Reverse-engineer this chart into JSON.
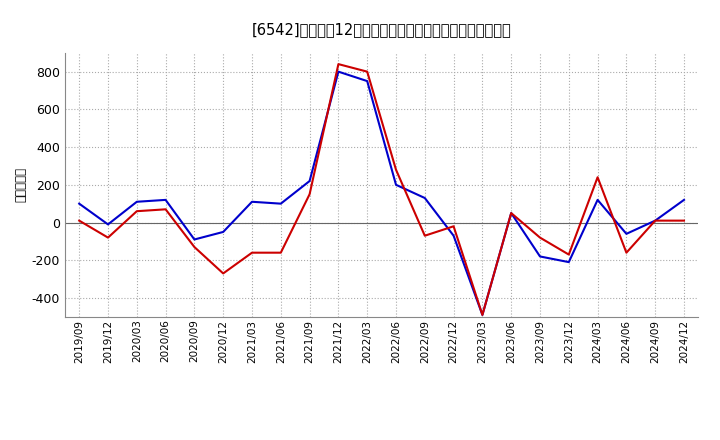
{
  "title": "[6542]　利益だ12か月移動合計の対前年同期増減額の推移",
  "ylabel": "（百万円）",
  "background_color": "#ffffff",
  "grid_color": "#aaaaaa",
  "x_labels": [
    "2019/09",
    "2019/12",
    "2020/03",
    "2020/06",
    "2020/09",
    "2020/12",
    "2021/03",
    "2021/06",
    "2021/09",
    "2021/12",
    "2022/03",
    "2022/06",
    "2022/09",
    "2022/12",
    "2023/03",
    "2023/06",
    "2023/09",
    "2023/12",
    "2024/03",
    "2024/06",
    "2024/09",
    "2024/12"
  ],
  "keijo_rieki": [
    100,
    -10,
    110,
    120,
    -90,
    -50,
    110,
    100,
    220,
    800,
    750,
    200,
    130,
    -70,
    -490,
    50,
    -180,
    -210,
    120,
    -60,
    10,
    120
  ],
  "touki_jun_rieki": [
    10,
    -80,
    60,
    70,
    -130,
    -270,
    -160,
    -160,
    150,
    840,
    800,
    280,
    -70,
    -20,
    -490,
    50,
    -80,
    -170,
    240,
    -160,
    10,
    10
  ],
  "keijo_color": "#0000cc",
  "touki_color": "#cc0000",
  "ylim": [
    -500,
    900
  ],
  "yticks": [
    -400,
    -200,
    0,
    200,
    400,
    600,
    800
  ]
}
